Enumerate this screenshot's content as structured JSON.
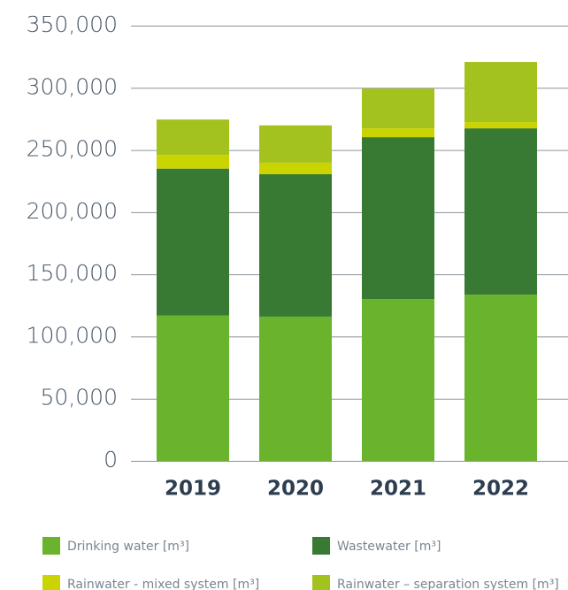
{
  "chart_data": {
    "type": "bar",
    "stacked": true,
    "categories": [
      "2019",
      "2020",
      "2021",
      "2022"
    ],
    "series": [
      {
        "name": "Drinking water [m³]",
        "color": "#6ab42d",
        "values": [
          117000,
          116000,
          130000,
          133700
        ]
      },
      {
        "name": "Wastewater [m³]",
        "color": "#387a33",
        "values": [
          118000,
          114500,
          130300,
          133700
        ]
      },
      {
        "name": "Rainwater - mixed system [m³]",
        "color": "#c9d400",
        "values": [
          11000,
          9300,
          7100,
          5000
        ]
      },
      {
        "name": "Rainwater – separation system [m³]",
        "color": "#a4c21e",
        "values": [
          28500,
          30000,
          32000,
          48400
        ]
      }
    ],
    "ylim": [
      0,
      350000
    ],
    "yticks": [
      0,
      {
        "value": 50000,
        "label": "50,000"
      },
      {
        "value": 100000,
        "label": "100,000"
      },
      {
        "value": 150000,
        "label": "150,000"
      },
      {
        "value": 200000,
        "label": "200,000"
      },
      {
        "value": 250000,
        "label": "250,000"
      },
      {
        "value": 300000,
        "label": "300,000"
      },
      {
        "value": 350000,
        "label": "350,000"
      }
    ],
    "grid": true,
    "legend": "bottom"
  }
}
